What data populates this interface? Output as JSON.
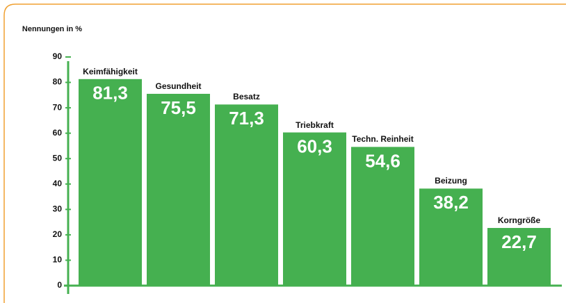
{
  "chart_data": {
    "type": "bar",
    "y_label": "Nennungen in %",
    "categories": [
      "Keimfähigkeit",
      "Gesundheit",
      "Besatz",
      "Triebkraft",
      "Techn. Reinheit",
      "Beizung",
      "Korngröße"
    ],
    "values": [
      81.3,
      75.5,
      71.3,
      60.3,
      54.6,
      38.2,
      22.7
    ],
    "value_labels": [
      "81,3",
      "75,5",
      "71,3",
      "60,3",
      "54,6",
      "38,2",
      "22,7"
    ],
    "color": "#45b050",
    "ylim": [
      0,
      90
    ],
    "yticks": [
      0,
      10,
      20,
      30,
      40,
      50,
      60,
      70,
      80,
      90
    ]
  }
}
